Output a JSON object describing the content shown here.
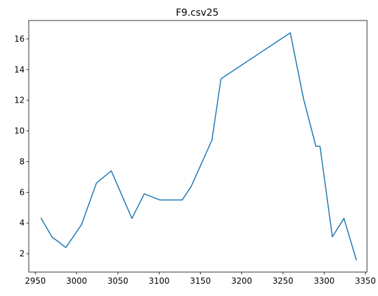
{
  "chart_data": {
    "type": "line",
    "title": "F9.csv25",
    "xlabel": "",
    "ylabel": "",
    "xlim": [
      2942,
      3352
    ],
    "ylim": [
      0.8,
      17.2
    ],
    "xticks": [
      2950,
      3000,
      3050,
      3100,
      3150,
      3200,
      3250,
      3300,
      3350
    ],
    "yticks": [
      2,
      4,
      6,
      8,
      10,
      12,
      14,
      16
    ],
    "grid": false,
    "colors": {
      "series": "#1f77b4",
      "axes": "#000000",
      "background": "#ffffff"
    },
    "series": [
      {
        "x": [
          2957,
          2970,
          2987,
          3006,
          3024,
          3042,
          3067,
          3082,
          3101,
          3128,
          3139,
          3164,
          3175,
          3259,
          3275,
          3290,
          3295,
          3310,
          3324,
          3339
        ],
        "y": [
          4.3,
          3.1,
          2.4,
          3.9,
          6.6,
          7.4,
          4.3,
          5.9,
          5.5,
          5.5,
          6.4,
          9.4,
          13.4,
          16.4,
          12.1,
          9.0,
          9.0,
          3.1,
          4.3,
          1.6
        ]
      }
    ]
  }
}
